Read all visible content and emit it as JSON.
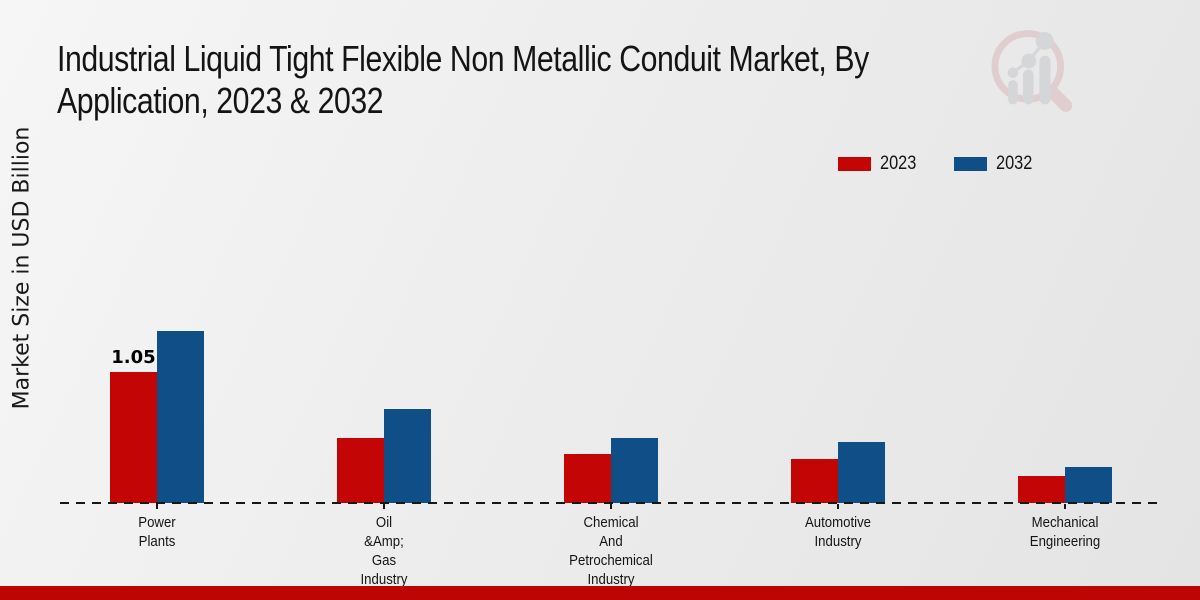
{
  "header": {
    "title_line1": "Industrial Liquid Tight Flexible Non Metallic Conduit Market, By",
    "title_line2": "Application, 2023 & 2032"
  },
  "y_axis_label": "Market Size in USD Billion",
  "colors": {
    "series_2023": "#c40505",
    "series_2032": "#0f4e87",
    "footer_strip": "#bd0504",
    "baseline": "#161616",
    "watermark_ring": "#d9b3b8",
    "watermark_figures": "#c2c4c9"
  },
  "chart_data": {
    "type": "bar",
    "title": "Industrial Liquid Tight Flexible Non Metallic Conduit Market, By Application, 2023 & 2032",
    "xlabel": "",
    "ylabel": "Market Size in USD Billion",
    "categories": [
      [
        "Power",
        "Plants"
      ],
      [
        "Oil",
        "&Amp;",
        "Gas",
        "Industry"
      ],
      [
        "Chemical",
        "And",
        "Petrochemical",
        "Industry"
      ],
      [
        "Automotive",
        "Industry"
      ],
      [
        "Mechanical",
        "Engineering"
      ]
    ],
    "series": [
      {
        "name": "2023",
        "color": "#c40505",
        "values": [
          1.05,
          0.52,
          0.39,
          0.35,
          0.22
        ]
      },
      {
        "name": "2032",
        "color": "#0f4e87",
        "values": [
          1.38,
          0.75,
          0.52,
          0.49,
          0.29
        ]
      }
    ],
    "bar_value_labels": [
      {
        "series": "2023",
        "category_index": 0,
        "text": "1.05"
      }
    ],
    "ylim": [
      0,
      1.6
    ],
    "grid": false,
    "baseline_style": "dashed",
    "legend_position": "top-right"
  }
}
